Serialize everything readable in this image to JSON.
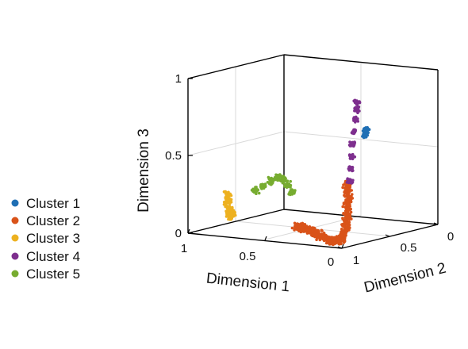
{
  "chart_data": {
    "type": "scatter",
    "projection": "3d",
    "title": "",
    "xlabel": "Dimension 1",
    "ylabel": "Dimension 2",
    "zlabel": "Dimension 3",
    "xlim": [
      0,
      1
    ],
    "ylim": [
      0,
      1
    ],
    "zlim": [
      0,
      1
    ],
    "x_ticks": [
      "1",
      "0.5",
      "0"
    ],
    "y_ticks": [
      "1",
      "0.5",
      "0"
    ],
    "z_ticks": [
      "0",
      "0.5",
      "1"
    ],
    "grid": true,
    "legend_position": "left",
    "series": [
      {
        "name": "Cluster 1",
        "color": "#1f6fb4",
        "points": [
          [
            0.38,
            0.145,
            0.58
          ],
          [
            0.39,
            0.14,
            0.56
          ],
          [
            0.37,
            0.15,
            0.6
          ],
          [
            0.385,
            0.13,
            0.57
          ],
          [
            0.375,
            0.16,
            0.59
          ]
        ]
      },
      {
        "name": "Cluster 2",
        "color": "#d95319",
        "points": [
          [
            0.345,
            0.92,
            0.092
          ],
          [
            0.33,
            0.91,
            0.085
          ],
          [
            0.315,
            0.9,
            0.08
          ],
          [
            0.3,
            0.89,
            0.075
          ],
          [
            0.285,
            0.88,
            0.068
          ],
          [
            0.27,
            0.87,
            0.06
          ],
          [
            0.255,
            0.86,
            0.05
          ],
          [
            0.24,
            0.85,
            0.04
          ],
          [
            0.225,
            0.84,
            0.03
          ],
          [
            0.21,
            0.83,
            0.02
          ],
          [
            0.195,
            0.82,
            0.012
          ],
          [
            0.18,
            0.815,
            0.006
          ],
          [
            0.165,
            0.81,
            0.002
          ],
          [
            0.15,
            0.81,
            0.005
          ],
          [
            0.135,
            0.81,
            0.01
          ],
          [
            0.12,
            0.815,
            0.022
          ],
          [
            0.105,
            0.82,
            0.04
          ],
          [
            0.092,
            0.825,
            0.07
          ],
          [
            0.08,
            0.83,
            0.11
          ],
          [
            0.072,
            0.835,
            0.15
          ],
          [
            0.065,
            0.84,
            0.19
          ],
          [
            0.06,
            0.845,
            0.23
          ],
          [
            0.055,
            0.85,
            0.27
          ],
          [
            0.052,
            0.855,
            0.31
          ],
          [
            0.05,
            0.86,
            0.35
          ],
          [
            0.048,
            0.865,
            0.39
          ]
        ]
      },
      {
        "name": "Cluster 3",
        "color": "#edb120",
        "points": [
          [
            0.96,
            0.65,
            0.2
          ],
          [
            0.94,
            0.68,
            0.16
          ],
          [
            0.92,
            0.7,
            0.12
          ],
          [
            0.9,
            0.72,
            0.1
          ],
          [
            0.88,
            0.75,
            0.09
          ],
          [
            0.86,
            0.78,
            0.095
          ],
          [
            0.84,
            0.81,
            0.105
          ],
          [
            0.82,
            0.84,
            0.12
          ]
        ]
      },
      {
        "name": "Cluster 4",
        "color": "#7e2f8e",
        "points": [
          [
            0.05,
            0.84,
            0.4
          ],
          [
            0.05,
            0.83,
            0.48
          ],
          [
            0.05,
            0.82,
            0.56
          ],
          [
            0.048,
            0.81,
            0.64
          ],
          [
            0.046,
            0.8,
            0.72
          ],
          [
            0.045,
            0.79,
            0.8
          ],
          [
            0.044,
            0.78,
            0.86
          ],
          [
            0.043,
            0.775,
            0.9
          ]
        ]
      },
      {
        "name": "Cluster 5",
        "color": "#77ac30",
        "points": [
          [
            0.8,
            0.62,
            0.24
          ],
          [
            0.76,
            0.6,
            0.27
          ],
          [
            0.72,
            0.58,
            0.3
          ],
          [
            0.69,
            0.56,
            0.32
          ],
          [
            0.66,
            0.55,
            0.31
          ],
          [
            0.63,
            0.55,
            0.28
          ],
          [
            0.6,
            0.56,
            0.24
          ]
        ]
      }
    ]
  }
}
